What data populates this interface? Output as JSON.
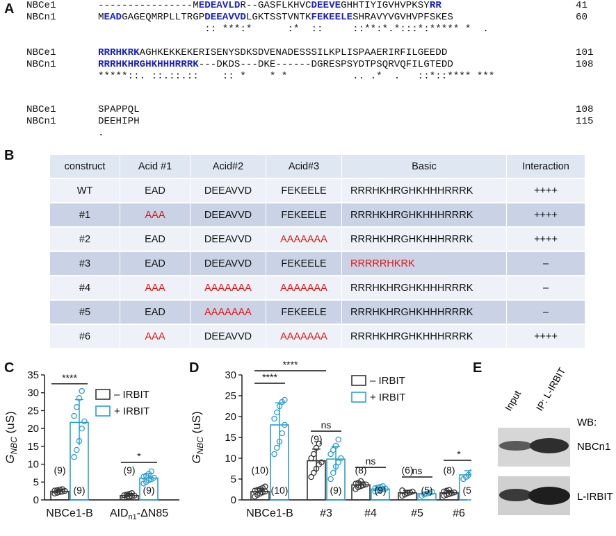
{
  "panelA": {
    "letter": "A",
    "block1": {
      "names": [
        "NBCe1",
        "NBCn1",
        ""
      ],
      "lines": [
        [
          [
            "t",
            "----------------M"
          ],
          [
            "b",
            "EDEAVLD"
          ],
          [
            "t",
            "R--GASFLKHVC"
          ],
          [
            "b",
            "DEEVE"
          ],
          [
            "t",
            "GHHTIYIGVHVPKSY"
          ],
          [
            "b",
            "RR"
          ]
        ],
        [
          [
            "t",
            "M"
          ],
          [
            "b",
            "EAD"
          ],
          [
            "t",
            "GAGEQMRPLLTRGP"
          ],
          [
            "b",
            "DEEAVVD"
          ],
          [
            "t",
            "LGKTSSTVNTK"
          ],
          [
            "b",
            "FEKEELE"
          ],
          [
            "t",
            "SHRAVYVGVHVPFSKES"
          ]
        ],
        [
          [
            "t",
            "                  :: ***:*      :*  ::     ::**:*.*:::*:***** *  ."
          ]
        ]
      ],
      "nums": [
        "41",
        "60",
        ""
      ]
    },
    "block2": {
      "names": [
        "NBCe1",
        "NBCn1",
        ""
      ],
      "lines": [
        [
          [
            "b",
            "RRRHKRK"
          ],
          [
            "t",
            "AGHKEKKEKERISENYSDKSDVENADESSSILKPLISPAAERIRFILGEEDD"
          ]
        ],
        [
          [
            "b",
            "RRRHKHRGHKHHHRRRK"
          ],
          [
            "t",
            "---DKDS---DKE------DGRESPSYDTPSQRVQFILGTEDD"
          ]
        ],
        [
          [
            "t",
            "*****::. ::.::.::    :: *    * *           .. .*  .   ::*::**** ***"
          ]
        ]
      ],
      "nums": [
        "101",
        "108",
        ""
      ]
    },
    "block3": {
      "names": [
        "NBCe1",
        "NBCn1",
        ""
      ],
      "lines": [
        [
          [
            "t",
            "SPAPPQL"
          ]
        ],
        [
          [
            "t",
            "DEEHIPH"
          ]
        ],
        [
          [
            "t",
            "."
          ]
        ]
      ],
      "nums": [
        "108",
        "115",
        ""
      ]
    }
  },
  "panelB": {
    "letter": "B",
    "headers": [
      "construct",
      "Acid #1",
      "Acid#2",
      "Acid#3",
      "Basic",
      "Interaction"
    ],
    "rows": [
      {
        "cells": [
          "WT",
          "EAD",
          "DEEAVVD",
          "FEKEELE",
          "RRRHKHRGHKHHHRRRK",
          "++++"
        ],
        "mut": [
          false,
          false,
          false,
          false,
          false,
          false
        ]
      },
      {
        "cells": [
          "#1",
          "AAA",
          "DEEAVVD",
          "FEKEELE",
          "RRRHKHRGHKHHHRRRK",
          "++++"
        ],
        "mut": [
          false,
          true,
          false,
          false,
          false,
          false
        ]
      },
      {
        "cells": [
          "#2",
          "EAD",
          "DEEAVVD",
          "AAAAAAA",
          "RRRHKHRGHKHHHRRRK",
          "++++"
        ],
        "mut": [
          false,
          false,
          false,
          true,
          false,
          false
        ]
      },
      {
        "cells": [
          "#3",
          "EAD",
          "DEEAVVD",
          "FEKEELE",
          "RRRRRHKRK",
          "–"
        ],
        "mut": [
          false,
          false,
          false,
          false,
          true,
          false
        ]
      },
      {
        "cells": [
          "#4",
          "AAA",
          "AAAAAAA",
          "AAAAAAA",
          "RRRHKHRGHKHHHRRRK",
          "–"
        ],
        "mut": [
          false,
          true,
          true,
          true,
          false,
          false
        ]
      },
      {
        "cells": [
          "#5",
          "EAD",
          "AAAAAAA",
          "FEKEELE",
          "RRRHKHRGHKHHHRRRK",
          "–"
        ],
        "mut": [
          false,
          false,
          true,
          false,
          false,
          false
        ]
      },
      {
        "cells": [
          "#6",
          "AAA",
          "DEEAVVD",
          "AAAAAAA",
          "RRRHKHRGHKHHHRRRK",
          "++++"
        ],
        "mut": [
          false,
          true,
          false,
          true,
          false,
          false
        ]
      }
    ],
    "colors": {
      "header": "#dfe7f2",
      "light": "#eef2f8",
      "dark": "#c9d3e5",
      "mutation": "#e01313"
    }
  },
  "chart_data": [
    {
      "panel": "C",
      "type": "bar",
      "ylabel_main": "G",
      "ylabel_sub": "NBC",
      "ylabel_unit": " (uS)",
      "ylim": [
        0,
        35
      ],
      "yticks": [
        0,
        5,
        10,
        15,
        20,
        25,
        30,
        35
      ],
      "categories": [
        "NBCe1-B",
        "AID"
      ],
      "category_sub": [
        "",
        "n1"
      ],
      "category_suffix": [
        "",
        "-ΔN85"
      ],
      "legend": [
        "– IRBIT",
        "+ IRBIT"
      ],
      "series": [
        {
          "name": "– IRBIT",
          "values": [
            2.4,
            1.2
          ],
          "errors": [
            0.6,
            0.6
          ],
          "n": [
            "(9)",
            "(9)"
          ],
          "points": [
            [
              1.8,
              2.0,
              2.2,
              2.3,
              2.5,
              2.6,
              2.7,
              2.9,
              3.0
            ],
            [
              0.6,
              0.8,
              0.9,
              1.0,
              1.2,
              1.3,
              1.5,
              1.7,
              1.9
            ]
          ]
        },
        {
          "name": "+ IRBIT",
          "values": [
            21.7,
            6.1
          ],
          "errors": [
            6.4,
            1.2
          ],
          "n": [
            "(9)",
            "(9)"
          ],
          "points": [
            [
              12.0,
              14.0,
              16.5,
              20.0,
              22.0,
              23.5,
              26.0,
              28.5,
              30.5
            ],
            [
              4.6,
              5.0,
              5.5,
              5.8,
              6.2,
              6.5,
              6.8,
              7.3,
              8.0
            ]
          ]
        }
      ],
      "significance": [
        {
          "label": "****",
          "y": 32.5
        },
        {
          "label": "*",
          "y": 10.5
        }
      ]
    },
    {
      "panel": "D",
      "type": "bar",
      "ylabel_main": "G",
      "ylabel_sub": "NBC",
      "ylabel_unit": " (uS)",
      "ylim": [
        0,
        30
      ],
      "yticks": [
        0,
        5,
        10,
        15,
        20,
        25,
        30
      ],
      "categories": [
        "NBCe1-B",
        "#3",
        "#4",
        "#5",
        "#6"
      ],
      "legend": [
        "– IRBIT",
        "+ IRBIT"
      ],
      "series": [
        {
          "name": "– IRBIT",
          "values": [
            2.0,
            9.4,
            3.6,
            1.7,
            1.7
          ],
          "errors": [
            0.7,
            2.8,
            0.7,
            0.6,
            0.5
          ],
          "n": [
            "(10)",
            "(9)",
            "(8)",
            "(6)",
            "(8)"
          ],
          "points": [
            [
              0.8,
              1.2,
              1.5,
              1.8,
              2.0,
              2.2,
              2.4,
              2.6,
              2.9,
              3.2
            ],
            [
              5.5,
              6.5,
              7.5,
              8.5,
              9.0,
              10.0,
              11.0,
              12.5,
              13.5
            ],
            [
              2.6,
              3.0,
              3.3,
              3.5,
              3.7,
              3.9,
              4.1,
              4.5
            ],
            [
              1.0,
              1.3,
              1.6,
              1.8,
              2.0,
              2.3
            ],
            [
              1.0,
              1.2,
              1.4,
              1.6,
              1.8,
              2.0,
              2.2,
              2.4
            ]
          ]
        },
        {
          "name": "+ IRBIT",
          "values": [
            18.0,
            9.8,
            2.6,
            1.5,
            6.0
          ],
          "errors": [
            5.3,
            3.0,
            0.5,
            0.4,
            1.0
          ],
          "n": [
            "(10)",
            "(9)",
            "(9)",
            "(5)",
            "(5)"
          ],
          "points": [
            [
              11.0,
              12.5,
              14.0,
              16.0,
              18.0,
              19.5,
              21.0,
              22.5,
              23.5,
              24.0
            ],
            [
              5.0,
              6.5,
              8.0,
              9.0,
              10.0,
              11.0,
              12.0,
              13.0,
              14.5
            ],
            [
              2.0,
              2.2,
              2.4,
              2.6,
              2.7,
              2.8,
              3.0,
              3.1,
              3.3
            ],
            [
              1.0,
              1.3,
              1.5,
              1.7,
              1.9
            ],
            [
              5.0,
              5.5,
              6.0,
              6.6,
              7.0
            ]
          ]
        }
      ],
      "significance": [
        {
          "label": "****",
          "y": 28.0,
          "from": 0,
          "to": 0
        },
        {
          "label": "****",
          "y": 31.0,
          "from": 0,
          "to": 1
        },
        {
          "label": "ns",
          "y": 16.5,
          "from": 1,
          "to": 1
        },
        {
          "label": "ns",
          "y": 7.8,
          "from": 2,
          "to": 2
        },
        {
          "label": "ns",
          "y": 5.5,
          "from": 3,
          "to": 3
        },
        {
          "label": "*",
          "y": 9.5,
          "from": 4,
          "to": 4
        }
      ]
    }
  ],
  "panelC": {
    "letter": "C"
  },
  "panelD": {
    "letter": "D"
  },
  "panelE": {
    "letter": "E",
    "lanes": [
      "Input",
      "IP: L-IRBIT"
    ],
    "wb_label": "WB:",
    "blots": [
      "NBCn1",
      "L-IRBIT"
    ]
  },
  "colors": {
    "minus": "#333333",
    "plus": "#2a9fcb",
    "seqBold": "#1a22c8"
  }
}
